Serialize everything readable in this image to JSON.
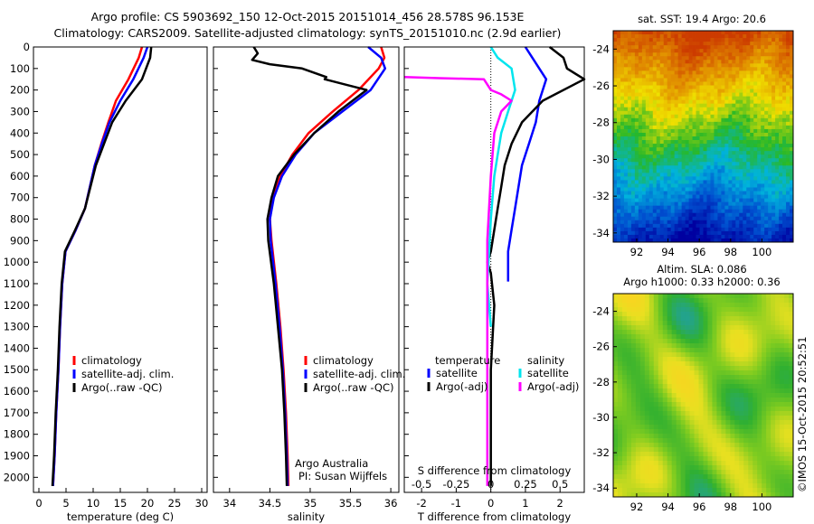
{
  "header": {
    "line1": "Argo profile: CS 5903692_150 12-Oct-2015 20151014_456 28.578S 96.153E",
    "line2": "Climatology: CARS2009. Satellite-adjusted climatology: synTS_20151010.nc (2.9d earlier)"
  },
  "watermark": "©IMOS 15-Oct-2015 20:52:51",
  "legend_profiles": [
    {
      "label": "climatology",
      "color": "#ff0000"
    },
    {
      "label": "satellite-adj. clim.",
      "color": "#0000ff"
    },
    {
      "label": "Argo(..raw -QC)",
      "color": "#000000"
    }
  ],
  "legend_diff": {
    "temp_header": "temperature",
    "sal_header": "salinity",
    "items": [
      {
        "label": "satellite",
        "color": "#0000ff",
        "group": "temperature"
      },
      {
        "label": "Argo(-adj)",
        "color": "#000000",
        "group": "temperature"
      },
      {
        "label": "satellite",
        "color": "#00e5ee",
        "group": "salinity"
      },
      {
        "label": "Argo(-adj)",
        "color": "#ff00ff",
        "group": "salinity"
      }
    ]
  },
  "credit": {
    "line1": "Argo Australia",
    "line2": "PI: Susan Wijffels"
  },
  "chart_data": [
    {
      "type": "line",
      "id": "temperature",
      "xlabel": "temperature (deg C)",
      "ylabel": "",
      "xlim": [
        -1,
        31
      ],
      "ylim": [
        2070,
        0
      ],
      "xticks": [
        0,
        5,
        10,
        15,
        20,
        25,
        30
      ],
      "yticks": [
        0,
        100,
        200,
        300,
        400,
        500,
        600,
        700,
        800,
        900,
        1000,
        1100,
        1200,
        1300,
        1400,
        1500,
        1600,
        1700,
        1800,
        1900,
        2000
      ],
      "series": [
        {
          "name": "climatology",
          "color": "#ff0000",
          "x": [
            19.0,
            18.4,
            16.5,
            14.2,
            12.8,
            11.5,
            10.3,
            9.4,
            8.5,
            6.8,
            4.9,
            4.3,
            3.9,
            3.6,
            3.2,
            2.9,
            2.6
          ],
          "y": [
            0,
            50,
            150,
            250,
            350,
            450,
            550,
            650,
            750,
            850,
            950,
            1100,
            1300,
            1500,
            1700,
            1900,
            2040
          ]
        },
        {
          "name": "satellite-adj. clim.",
          "color": "#0000ff",
          "x": [
            20.0,
            19.3,
            17.4,
            15.0,
            13.0,
            11.6,
            10.3,
            9.4,
            8.5,
            6.8,
            4.9,
            4.3,
            3.9,
            3.6,
            3.2,
            2.9,
            2.6
          ],
          "y": [
            0,
            50,
            150,
            250,
            350,
            450,
            550,
            650,
            750,
            850,
            950,
            1100,
            1300,
            1500,
            1700,
            1900,
            2040
          ]
        },
        {
          "name": "Argo(..raw -QC)",
          "color": "#000000",
          "x": [
            20.7,
            20.5,
            19.0,
            16.0,
            13.5,
            12.0,
            10.5,
            9.5,
            8.5,
            6.7,
            4.8,
            4.2,
            3.8,
            3.5,
            3.1,
            2.8,
            2.5
          ],
          "y": [
            0,
            50,
            150,
            250,
            350,
            450,
            550,
            650,
            750,
            850,
            950,
            1100,
            1300,
            1500,
            1700,
            1900,
            2040
          ]
        }
      ]
    },
    {
      "type": "line",
      "id": "salinity",
      "xlabel": "salinity",
      "ylabel": "",
      "xlim": [
        33.8,
        36.1
      ],
      "ylim": [
        2070,
        0
      ],
      "xticks": [
        34,
        34.5,
        35,
        35.5,
        36
      ],
      "series": [
        {
          "name": "climatology",
          "color": "#ff0000",
          "x": [
            35.88,
            35.92,
            35.85,
            35.6,
            35.28,
            34.98,
            34.78,
            34.63,
            34.54,
            34.5,
            34.52,
            34.58,
            34.63,
            34.67,
            34.7,
            34.72,
            34.73
          ],
          "y": [
            0,
            50,
            100,
            200,
            300,
            400,
            500,
            600,
            700,
            800,
            900,
            1100,
            1300,
            1500,
            1700,
            1900,
            2040
          ]
        },
        {
          "name": "satellite-adj. clim.",
          "color": "#0000ff",
          "x": [
            35.72,
            35.88,
            35.93,
            35.75,
            35.4,
            35.05,
            34.82,
            34.65,
            34.55,
            34.5,
            34.51,
            34.57,
            34.62,
            34.66,
            34.69,
            34.71,
            34.72
          ],
          "y": [
            0,
            50,
            100,
            200,
            300,
            400,
            500,
            600,
            700,
            800,
            900,
            1100,
            1300,
            1500,
            1700,
            1900,
            2040
          ]
        },
        {
          "name": "Argo(..raw -QC)",
          "color": "#000000",
          "x": [
            34.3,
            34.35,
            34.28,
            34.5,
            34.9,
            35.2,
            35.18,
            35.7,
            35.35,
            35.05,
            34.8,
            34.6,
            34.52,
            34.47,
            34.48,
            34.55,
            34.6,
            34.65,
            34.68,
            34.7,
            34.71
          ],
          "y": [
            0,
            30,
            60,
            80,
            100,
            140,
            150,
            200,
            300,
            400,
            500,
            600,
            700,
            800,
            900,
            1100,
            1300,
            1500,
            1700,
            1900,
            2040
          ]
        }
      ]
    },
    {
      "type": "line",
      "id": "difference",
      "xlabel": "T difference from climatology",
      "top_label": "S difference from climatology",
      "ylabel": "",
      "xlim": [
        -2.5,
        2.7
      ],
      "ylim": [
        2070,
        0
      ],
      "xticks": [
        -2,
        -1,
        0,
        1,
        2
      ],
      "top_ticks": [
        "-0.5",
        "-0.25",
        "0",
        "0.25",
        "0.5"
      ],
      "top_tick_positions": [
        -2.0,
        -1.0,
        0.0,
        1.0,
        2.0
      ],
      "series": [
        {
          "name": "temperature satellite",
          "color": "#0000ff",
          "x": [
            1.0,
            1.2,
            1.6,
            1.4,
            1.3,
            1.1,
            0.9,
            0.8,
            0.7,
            0.6,
            0.5,
            0.5,
            0.5,
            0.5
          ],
          "y": [
            0,
            50,
            150,
            250,
            350,
            450,
            550,
            650,
            750,
            850,
            950,
            1000,
            1050,
            1090
          ]
        },
        {
          "name": "temperature Argo(-adj)",
          "color": "#000000",
          "x": [
            1.7,
            2.1,
            2.2,
            2.7,
            1.5,
            0.9,
            0.6,
            0.4,
            0.3,
            0.2,
            0.1,
            0.0,
            -0.1,
            0.0,
            0.1,
            0.0,
            0.0,
            0.0
          ],
          "y": [
            0,
            50,
            100,
            150,
            250,
            350,
            450,
            550,
            650,
            750,
            850,
            950,
            1000,
            1050,
            1200,
            1500,
            1800,
            2040
          ]
        },
        {
          "name": "salinity satellite",
          "color": "#00e5ee",
          "x": [
            0.0,
            0.2,
            0.6,
            0.7,
            0.5,
            0.3,
            0.2,
            0.1,
            0.0,
            -0.1,
            0.0
          ],
          "y": [
            0,
            50,
            100,
            200,
            300,
            400,
            500,
            600,
            800,
            1100,
            1300
          ]
        },
        {
          "name": "salinity Argo(-adj)",
          "color": "#ff00ff",
          "x": [
            -2.5,
            -1.5,
            -0.2,
            0.0,
            0.3,
            0.6,
            0.3,
            0.1,
            0.0,
            -0.1,
            -0.1,
            -0.1,
            -0.1,
            -0.1
          ],
          "y": [
            140,
            145,
            150,
            200,
            220,
            250,
            300,
            400,
            600,
            900,
            1200,
            1500,
            1800,
            2040
          ]
        }
      ]
    },
    {
      "type": "heatmap",
      "id": "sst_map",
      "title": "sat. SST: 19.4  Argo: 20.6",
      "xlim": [
        90.5,
        102
      ],
      "ylim": [
        -34.5,
        -23
      ],
      "xticks": [
        92,
        94,
        96,
        98,
        100
      ],
      "yticks": [
        -24,
        -26,
        -28,
        -30,
        -32,
        -34
      ],
      "color_stops": [
        "#cc3b00",
        "#e08a00",
        "#f0e000",
        "#28b828",
        "#00b4dc",
        "#0050d0",
        "#0000a0"
      ]
    },
    {
      "type": "heatmap",
      "id": "sla_map",
      "title": "Altim. SLA: 0.086",
      "subtitle": "Argo h1000: 0.33  h2000: 0.36",
      "xlim": [
        90.5,
        102
      ],
      "ylim": [
        -34.5,
        -23
      ],
      "xticks": [
        92,
        94,
        96,
        98,
        100
      ],
      "yticks": [
        -24,
        -26,
        -28,
        -30,
        -32,
        -34
      ],
      "color_stops": [
        "#20a0a0",
        "#30b030",
        "#80cc20",
        "#e8e020",
        "#ffd020"
      ]
    }
  ]
}
